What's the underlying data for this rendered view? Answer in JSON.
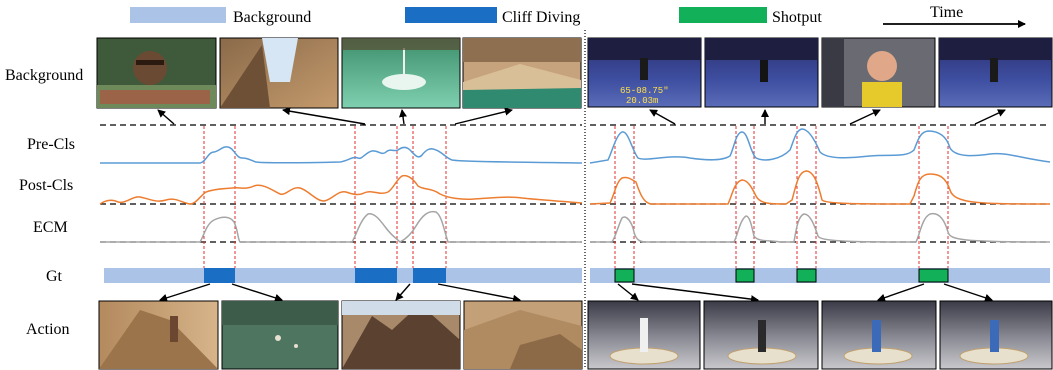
{
  "legend": [
    {
      "label": "Background",
      "color": "#aac3e6"
    },
    {
      "label": "Cliff Diving",
      "color": "#1a6fc4"
    },
    {
      "label": "Shotput",
      "color": "#13b05a"
    }
  ],
  "time_label": "Time",
  "row_labels": {
    "background": "Background",
    "pre_cls": "Pre-Cls",
    "post_cls": "Post-Cls",
    "ecm": "ECM",
    "gt": "Gt",
    "action": "Action"
  },
  "frame_overlay_text": {
    "line1": "65-08.75\"",
    "line2": "20.03m"
  },
  "colors": {
    "pre_cls": "#5b9bd5",
    "post_cls": "#ed7d31",
    "ecm": "#a5a5a5",
    "gt_background": "#aac3e6",
    "cliff_diving": "#1a6fc4",
    "shotput": "#13b05a",
    "boundary": "#e03030"
  }
}
